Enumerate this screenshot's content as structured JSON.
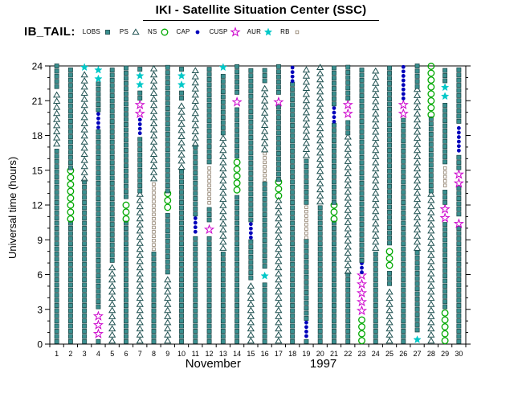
{
  "title": "IKI - Satellite Situation Center (SSC)",
  "dataset_label": "IB_TAIL:",
  "legend": {
    "items": [
      {
        "label": "LOBS",
        "symbol": "LOBS"
      },
      {
        "label": "PS",
        "symbol": "PS"
      },
      {
        "label": "NS",
        "symbol": "NS"
      },
      {
        "label": "CAP",
        "symbol": "CAP"
      },
      {
        "label": "CUSP",
        "symbol": "CUSP"
      },
      {
        "label": "AUR",
        "symbol": "AUR"
      },
      {
        "label": "RB",
        "symbol": "RB"
      }
    ]
  },
  "chart_data": {
    "type": "scatter",
    "title": "IKI - Satellite Situation Center (SSC)",
    "subtitle": "IB_TAIL",
    "xlabel": "November 1997",
    "month": "November",
    "year": "1997",
    "ylabel": "Universal time (hours)",
    "ylim": [
      0,
      24
    ],
    "xlim": [
      1,
      30
    ],
    "grid": false,
    "legend_position": "top",
    "y_ticks": [
      0,
      3,
      6,
      9,
      12,
      15,
      18,
      21,
      24
    ],
    "x_ticks": [
      1,
      2,
      3,
      4,
      5,
      6,
      7,
      8,
      9,
      10,
      11,
      12,
      13,
      14,
      15,
      16,
      17,
      18,
      19,
      20,
      21,
      22,
      23,
      24,
      25,
      26,
      27,
      28,
      29,
      30
    ],
    "symbols": {
      "LOBS": {
        "shape": "filled-square",
        "color": "#3a8f8f",
        "outline": "#1c4444",
        "size": 5.2,
        "spacing_px": 6.4
      },
      "PS": {
        "shape": "open-triangle",
        "color": "#1c4f4f",
        "fill": "#ffffff",
        "size": 7.5,
        "spacing_px": 7.6
      },
      "NS": {
        "shape": "open-circle",
        "color": "#00a800",
        "size": 7.6,
        "spacing_px": 8.6
      },
      "CAP": {
        "shape": "filled-circle",
        "color": "#0000bb",
        "size": 4.8,
        "spacing_px": 5.6
      },
      "CUSP": {
        "shape": "open-star",
        "color": "#cc00cc",
        "size": 10.8,
        "spacing_px": 11
      },
      "AUR": {
        "shape": "filled-star",
        "color": "#00c8c8",
        "size": 9.6,
        "spacing_px": 11
      },
      "RB": {
        "shape": "open-square",
        "color": "#8a7a66",
        "size": 3.6,
        "spacing_px": 5.4
      }
    },
    "days": [
      {
        "day": 1,
        "segments": [
          [
            0,
            17,
            "LOBS"
          ],
          [
            17,
            22,
            "PS"
          ],
          [
            22,
            24,
            "LOBS"
          ]
        ]
      },
      {
        "day": 2,
        "segments": [
          [
            0,
            10.5,
            "LOBS"
          ],
          [
            10.5,
            15,
            "NS"
          ],
          [
            15,
            24,
            "LOBS"
          ]
        ]
      },
      {
        "day": 3,
        "segments": [
          [
            0,
            14,
            "LOBS"
          ],
          [
            14,
            23.5,
            "PS"
          ],
          [
            23.5,
            24,
            "AUR"
          ]
        ]
      },
      {
        "day": 4,
        "segments": [
          [
            0,
            0.5,
            "LOBS"
          ],
          [
            0.5,
            3,
            "CUSP"
          ],
          [
            3,
            18.5,
            "LOBS"
          ],
          [
            18.5,
            20,
            "CAP"
          ],
          [
            20,
            22.5,
            "LOBS"
          ],
          [
            22.5,
            24,
            "AUR"
          ]
        ]
      },
      {
        "day": 5,
        "segments": [
          [
            0,
            7,
            "PS"
          ],
          [
            7,
            24,
            "LOBS"
          ]
        ]
      },
      {
        "day": 6,
        "segments": [
          [
            0,
            10.5,
            "LOBS"
          ],
          [
            10.5,
            12.5,
            "NS"
          ],
          [
            12.5,
            24,
            "LOBS"
          ]
        ]
      },
      {
        "day": 7,
        "segments": [
          [
            0,
            13,
            "PS"
          ],
          [
            13,
            18,
            "LOBS"
          ],
          [
            18,
            19.5,
            "CAP"
          ],
          [
            19.5,
            21,
            "CUSP"
          ],
          [
            21,
            22,
            "LOBS"
          ],
          [
            22,
            23.5,
            "AUR"
          ],
          [
            23.5,
            24,
            "LOBS"
          ]
        ]
      },
      {
        "day": 8,
        "segments": [
          [
            0,
            8,
            "LOBS"
          ],
          [
            8,
            14,
            "RB"
          ],
          [
            14,
            24,
            "PS"
          ]
        ]
      },
      {
        "day": 9,
        "segments": [
          [
            0,
            6,
            "PS"
          ],
          [
            6,
            11.5,
            "LOBS"
          ],
          [
            11.5,
            13,
            "NS"
          ],
          [
            13,
            24,
            "LOBS"
          ]
        ]
      },
      {
        "day": 10,
        "segments": [
          [
            0,
            15,
            "LOBS"
          ],
          [
            15,
            21,
            "PS"
          ],
          [
            21,
            22,
            "LOBS"
          ],
          [
            22,
            23.5,
            "AUR"
          ],
          [
            23.5,
            24,
            "LOBS"
          ]
        ]
      },
      {
        "day": 11,
        "segments": [
          [
            0,
            9.5,
            "LOBS"
          ],
          [
            9.5,
            11,
            "CAP"
          ],
          [
            11,
            17,
            "LOBS"
          ],
          [
            17,
            24,
            "PS"
          ]
        ]
      },
      {
        "day": 12,
        "segments": [
          [
            0,
            9.5,
            "LOBS"
          ],
          [
            9.5,
            10.5,
            "CUSP"
          ],
          [
            10.5,
            12,
            "LOBS"
          ],
          [
            12,
            15.5,
            "RB"
          ],
          [
            15.5,
            24,
            "LOBS"
          ]
        ]
      },
      {
        "day": 13,
        "segments": [
          [
            0,
            8,
            "LOBS"
          ],
          [
            8,
            18,
            "PS"
          ],
          [
            18,
            23.5,
            "LOBS"
          ],
          [
            23.5,
            24,
            "AUR"
          ]
        ]
      },
      {
        "day": 14,
        "segments": [
          [
            0,
            13,
            "LOBS"
          ],
          [
            13,
            16,
            "NS"
          ],
          [
            16,
            20.5,
            "LOBS"
          ],
          [
            20.5,
            21.5,
            "CUSP"
          ],
          [
            21.5,
            24,
            "LOBS"
          ]
        ]
      },
      {
        "day": 15,
        "segments": [
          [
            0,
            5.5,
            "PS"
          ],
          [
            5.5,
            9,
            "LOBS"
          ],
          [
            9,
            10.5,
            "CAP"
          ],
          [
            10.5,
            24,
            "LOBS"
          ]
        ]
      },
      {
        "day": 16,
        "segments": [
          [
            0,
            5.5,
            "LOBS"
          ],
          [
            5.5,
            6.5,
            "AUR"
          ],
          [
            6.5,
            14,
            "LOBS"
          ],
          [
            14,
            16.5,
            "RB"
          ],
          [
            16.5,
            22.5,
            "PS"
          ],
          [
            22.5,
            24,
            "LOBS"
          ]
        ]
      },
      {
        "day": 17,
        "segments": [
          [
            0,
            12.5,
            "PS"
          ],
          [
            12.5,
            14,
            "NS"
          ],
          [
            14,
            20.5,
            "LOBS"
          ],
          [
            20.5,
            21.5,
            "CUSP"
          ],
          [
            21.5,
            24,
            "LOBS"
          ]
        ]
      },
      {
        "day": 18,
        "segments": [
          [
            0,
            22.5,
            "LOBS"
          ],
          [
            22.5,
            24,
            "CAP"
          ]
        ]
      },
      {
        "day": 19,
        "segments": [
          [
            0,
            0.5,
            "LOBS"
          ],
          [
            0.5,
            2,
            "CAP"
          ],
          [
            2,
            9,
            "LOBS"
          ],
          [
            9,
            12,
            "RB"
          ],
          [
            12,
            16,
            "LOBS"
          ],
          [
            16,
            24,
            "PS"
          ]
        ]
      },
      {
        "day": 20,
        "segments": [
          [
            0,
            12,
            "LOBS"
          ],
          [
            12,
            24,
            "PS"
          ]
        ]
      },
      {
        "day": 21,
        "segments": [
          [
            0,
            10.5,
            "LOBS"
          ],
          [
            10.5,
            12,
            "NS"
          ],
          [
            12,
            19,
            "LOBS"
          ],
          [
            19,
            20.5,
            "CAP"
          ],
          [
            20.5,
            24,
            "LOBS"
          ]
        ]
      },
      {
        "day": 22,
        "segments": [
          [
            0,
            6,
            "LOBS"
          ],
          [
            6,
            18,
            "PS"
          ],
          [
            18,
            19.5,
            "LOBS"
          ],
          [
            19.5,
            21,
            "CUSP"
          ],
          [
            21,
            24,
            "LOBS"
          ]
        ]
      },
      {
        "day": 23,
        "segments": [
          [
            0,
            2.5,
            "NS"
          ],
          [
            2.5,
            6,
            "CUSP"
          ],
          [
            6,
            7,
            "CAP"
          ],
          [
            7,
            24,
            "LOBS"
          ]
        ]
      },
      {
        "day": 24,
        "segments": [
          [
            0,
            8,
            "LOBS"
          ],
          [
            8,
            24,
            "PS"
          ]
        ]
      },
      {
        "day": 25,
        "segments": [
          [
            0,
            5,
            "PS"
          ],
          [
            5,
            6.5,
            "LOBS"
          ],
          [
            6.5,
            8.5,
            "NS"
          ],
          [
            8.5,
            24,
            "LOBS"
          ]
        ]
      },
      {
        "day": 26,
        "segments": [
          [
            0,
            19.5,
            "LOBS"
          ],
          [
            19.5,
            21,
            "CUSP"
          ],
          [
            21,
            24,
            "CAP"
          ]
        ]
      },
      {
        "day": 27,
        "segments": [
          [
            0,
            1,
            "AUR"
          ],
          [
            1,
            8,
            "LOBS"
          ],
          [
            8,
            22,
            "PS"
          ],
          [
            22,
            24,
            "LOBS"
          ]
        ]
      },
      {
        "day": 28,
        "segments": [
          [
            0,
            13,
            "PS"
          ],
          [
            13,
            19.5,
            "LOBS"
          ],
          [
            19.5,
            24,
            "NS"
          ]
        ]
      },
      {
        "day": 29,
        "segments": [
          [
            0,
            3,
            "NS"
          ],
          [
            3,
            10.5,
            "LOBS"
          ],
          [
            10.5,
            12,
            "CUSP"
          ],
          [
            12,
            13.5,
            "LOBS"
          ],
          [
            13.5,
            15.5,
            "RB"
          ],
          [
            15.5,
            21,
            "LOBS"
          ],
          [
            21,
            22.5,
            "AUR"
          ],
          [
            22.5,
            24,
            "LOBS"
          ]
        ]
      },
      {
        "day": 30,
        "segments": [
          [
            0,
            10,
            "LOBS"
          ],
          [
            10,
            11,
            "CUSP"
          ],
          [
            11,
            13.5,
            "LOBS"
          ],
          [
            13.5,
            15,
            "CUSP"
          ],
          [
            15,
            16.5,
            "LOBS"
          ],
          [
            16.5,
            19,
            "CAP"
          ],
          [
            19,
            24,
            "LOBS"
          ]
        ]
      }
    ]
  }
}
